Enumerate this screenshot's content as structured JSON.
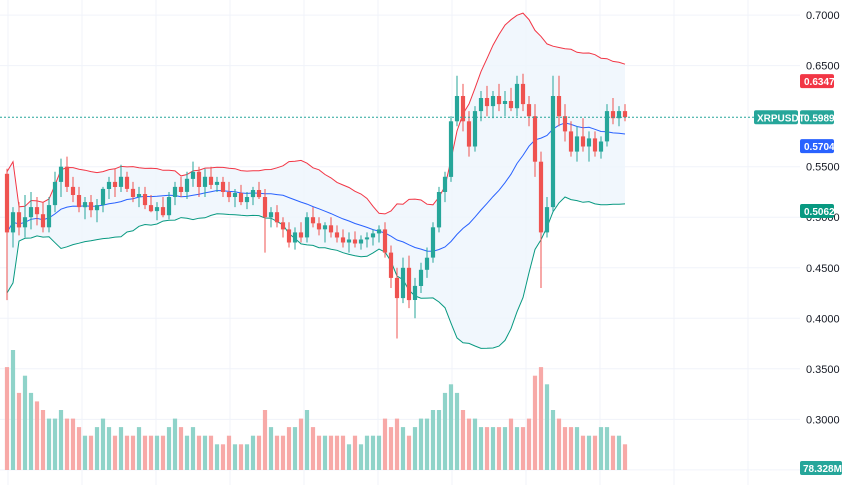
{
  "symbol": "XRPUSDT",
  "colors": {
    "up": "#26a69a",
    "down": "#ef5350",
    "volume_up": "#8fd3c9",
    "volume_down": "#f7a9a7",
    "upper_band": "#f23645",
    "middle_band": "#2962ff",
    "lower_band": "#089981",
    "band_fill": "#eef5fc",
    "last_price_line": "#26a69a"
  },
  "chart_data": {
    "type": "candlestick",
    "y_axis": {
      "ticks": [
        "0.7000",
        "0.6500",
        "0.5500",
        "0.5000",
        "0.4500",
        "0.4000",
        "0.3500",
        "0.3000",
        "0.2500"
      ],
      "ylim": [
        0.235,
        0.715
      ]
    },
    "price_tags": [
      {
        "id": "upper",
        "label": "0.6347",
        "value": 0.6347,
        "color": "#f23645"
      },
      {
        "id": "last",
        "label": "0.5989",
        "value": 0.5989,
        "color": "#26a69a"
      },
      {
        "id": "middle",
        "label": "0.5704",
        "value": 0.5704,
        "color": "#2962ff"
      },
      {
        "id": "lower",
        "label": "0.5062",
        "value": 0.5062,
        "color": "#089981"
      }
    ],
    "volume_tag": {
      "label": "78.328M",
      "color": "#26a69a"
    },
    "ohlc": [
      [
        0.543,
        0.548,
        0.418,
        0.485
      ],
      [
        0.485,
        0.51,
        0.47,
        0.505
      ],
      [
        0.505,
        0.515,
        0.482,
        0.49
      ],
      [
        0.49,
        0.522,
        0.48,
        0.5
      ],
      [
        0.5,
        0.525,
        0.488,
        0.51
      ],
      [
        0.51,
        0.52,
        0.492,
        0.503
      ],
      [
        0.503,
        0.515,
        0.485,
        0.49
      ],
      [
        0.49,
        0.52,
        0.485,
        0.512
      ],
      [
        0.512,
        0.545,
        0.505,
        0.535
      ],
      [
        0.535,
        0.558,
        0.52,
        0.55
      ],
      [
        0.55,
        0.56,
        0.525,
        0.53
      ],
      [
        0.53,
        0.54,
        0.515,
        0.522
      ],
      [
        0.522,
        0.53,
        0.505,
        0.51
      ],
      [
        0.51,
        0.52,
        0.498,
        0.515
      ],
      [
        0.515,
        0.522,
        0.5,
        0.507
      ],
      [
        0.507,
        0.518,
        0.495,
        0.512
      ],
      [
        0.512,
        0.53,
        0.505,
        0.528
      ],
      [
        0.528,
        0.54,
        0.518,
        0.535
      ],
      [
        0.535,
        0.548,
        0.52,
        0.53
      ],
      [
        0.53,
        0.552,
        0.525,
        0.54
      ],
      [
        0.54,
        0.545,
        0.525,
        0.528
      ],
      [
        0.528,
        0.535,
        0.515,
        0.52
      ],
      [
        0.52,
        0.53,
        0.51,
        0.523
      ],
      [
        0.523,
        0.53,
        0.508,
        0.512
      ],
      [
        0.512,
        0.522,
        0.505,
        0.506
      ],
      [
        0.506,
        0.515,
        0.497,
        0.51
      ],
      [
        0.51,
        0.52,
        0.5,
        0.502
      ],
      [
        0.502,
        0.525,
        0.498,
        0.52
      ],
      [
        0.52,
        0.535,
        0.512,
        0.53
      ],
      [
        0.53,
        0.54,
        0.52,
        0.525
      ],
      [
        0.525,
        0.545,
        0.518,
        0.538
      ],
      [
        0.538,
        0.555,
        0.53,
        0.545
      ],
      [
        0.545,
        0.55,
        0.52,
        0.53
      ],
      [
        0.53,
        0.548,
        0.52,
        0.54
      ],
      [
        0.54,
        0.55,
        0.528,
        0.532
      ],
      [
        0.532,
        0.54,
        0.525,
        0.535
      ],
      [
        0.535,
        0.54,
        0.52,
        0.525
      ],
      [
        0.525,
        0.535,
        0.515,
        0.52
      ],
      [
        0.52,
        0.528,
        0.51,
        0.524
      ],
      [
        0.524,
        0.532,
        0.512,
        0.515
      ],
      [
        0.515,
        0.525,
        0.508,
        0.52
      ],
      [
        0.52,
        0.53,
        0.512,
        0.527
      ],
      [
        0.527,
        0.535,
        0.518,
        0.52
      ],
      [
        0.52,
        0.528,
        0.465,
        0.5
      ],
      [
        0.5,
        0.51,
        0.49,
        0.505
      ],
      [
        0.505,
        0.512,
        0.49,
        0.495
      ],
      [
        0.495,
        0.5,
        0.48,
        0.488
      ],
      [
        0.488,
        0.495,
        0.47,
        0.475
      ],
      [
        0.475,
        0.49,
        0.468,
        0.485
      ],
      [
        0.485,
        0.495,
        0.475,
        0.48
      ],
      [
        0.48,
        0.505,
        0.475,
        0.5
      ],
      [
        0.5,
        0.51,
        0.49,
        0.494
      ],
      [
        0.494,
        0.5,
        0.482,
        0.488
      ],
      [
        0.488,
        0.495,
        0.475,
        0.492
      ],
      [
        0.492,
        0.5,
        0.48,
        0.485
      ],
      [
        0.485,
        0.492,
        0.475,
        0.48
      ],
      [
        0.48,
        0.488,
        0.47,
        0.475
      ],
      [
        0.475,
        0.485,
        0.465,
        0.478
      ],
      [
        0.478,
        0.486,
        0.47,
        0.474
      ],
      [
        0.474,
        0.482,
        0.468,
        0.478
      ],
      [
        0.478,
        0.485,
        0.47,
        0.48
      ],
      [
        0.48,
        0.488,
        0.472,
        0.484
      ],
      [
        0.484,
        0.492,
        0.475,
        0.488
      ],
      [
        0.488,
        0.495,
        0.46,
        0.465
      ],
      [
        0.465,
        0.472,
        0.43,
        0.44
      ],
      [
        0.44,
        0.45,
        0.38,
        0.42
      ],
      [
        0.42,
        0.46,
        0.415,
        0.45
      ],
      [
        0.45,
        0.462,
        0.41,
        0.418
      ],
      [
        0.418,
        0.44,
        0.4,
        0.432
      ],
      [
        0.432,
        0.455,
        0.425,
        0.448
      ],
      [
        0.448,
        0.47,
        0.44,
        0.46
      ],
      [
        0.46,
        0.495,
        0.455,
        0.49
      ],
      [
        0.49,
        0.53,
        0.485,
        0.525
      ],
      [
        0.525,
        0.545,
        0.515,
        0.54
      ],
      [
        0.54,
        0.6,
        0.535,
        0.595
      ],
      [
        0.595,
        0.64,
        0.59,
        0.62
      ],
      [
        0.62,
        0.632,
        0.585,
        0.595
      ],
      [
        0.595,
        0.605,
        0.56,
        0.57
      ],
      [
        0.57,
        0.61,
        0.565,
        0.605
      ],
      [
        0.605,
        0.625,
        0.595,
        0.618
      ],
      [
        0.618,
        0.63,
        0.6,
        0.61
      ],
      [
        0.61,
        0.625,
        0.598,
        0.62
      ],
      [
        0.62,
        0.632,
        0.605,
        0.612
      ],
      [
        0.612,
        0.625,
        0.6,
        0.615
      ],
      [
        0.615,
        0.628,
        0.605,
        0.608
      ],
      [
        0.608,
        0.64,
        0.6,
        0.632
      ],
      [
        0.632,
        0.642,
        0.605,
        0.612
      ],
      [
        0.612,
        0.62,
        0.59,
        0.6
      ],
      [
        0.6,
        0.612,
        0.54,
        0.555
      ],
      [
        0.555,
        0.565,
        0.43,
        0.485
      ],
      [
        0.485,
        0.52,
        0.48,
        0.51
      ],
      [
        0.51,
        0.64,
        0.505,
        0.62
      ],
      [
        0.62,
        0.64,
        0.59,
        0.6
      ],
      [
        0.6,
        0.612,
        0.575,
        0.585
      ],
      [
        0.585,
        0.595,
        0.56,
        0.565
      ],
      [
        0.565,
        0.59,
        0.555,
        0.58
      ],
      [
        0.58,
        0.598,
        0.565,
        0.57
      ],
      [
        0.57,
        0.585,
        0.555,
        0.578
      ],
      [
        0.578,
        0.585,
        0.56,
        0.565
      ],
      [
        0.565,
        0.58,
        0.558,
        0.575
      ],
      [
        0.575,
        0.612,
        0.57,
        0.605
      ],
      [
        0.605,
        0.618,
        0.592,
        0.598
      ],
      [
        0.598,
        0.61,
        0.59,
        0.605
      ],
      [
        0.605,
        0.612,
        0.595,
        0.599
      ]
    ],
    "volume": [
      12,
      14,
      9,
      11,
      9,
      8,
      7,
      6,
      6,
      7,
      6,
      6,
      5,
      4,
      4,
      5,
      6,
      5,
      4,
      5,
      4,
      4,
      5,
      4,
      4,
      4,
      4,
      5,
      6,
      5,
      4,
      5,
      4,
      4,
      4,
      3,
      3,
      4,
      3,
      3,
      3,
      4,
      4,
      7,
      5,
      4,
      4,
      5,
      5,
      6,
      7,
      5,
      4,
      4,
      4,
      4,
      4,
      3,
      4,
      3,
      4,
      4,
      4,
      6,
      5,
      6,
      5,
      4,
      5,
      6,
      6,
      7,
      7,
      9,
      10,
      9,
      7,
      6,
      6,
      5,
      5,
      5,
      5,
      5,
      6,
      5,
      5,
      6,
      11,
      12,
      10,
      7,
      6,
      5,
      5,
      5,
      4,
      4,
      4,
      5,
      5,
      4,
      4,
      3
    ]
  }
}
